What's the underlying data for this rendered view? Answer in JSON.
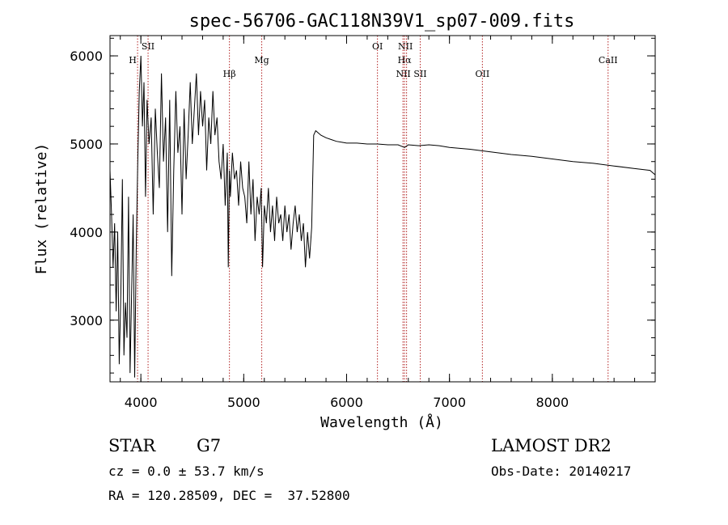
{
  "chart_data": {
    "type": "line",
    "title": "spec-56706-GAC118N39V1_sp07-009.fits",
    "xlabel": "Wavelength (Å)",
    "ylabel": "Flux (relative)",
    "xlim": [
      3700,
      9000
    ],
    "ylim": [
      2300,
      6230
    ],
    "x_ticks": [
      4000,
      5000,
      6000,
      7000,
      8000
    ],
    "x_tick_labels": [
      "4000",
      "5000",
      "6000",
      "7000",
      "8000"
    ],
    "y_ticks": [
      3000,
      4000,
      5000,
      6000
    ],
    "y_tick_labels": [
      "3000",
      "4000",
      "5000",
      "6000"
    ],
    "grid": false,
    "line_color": "#000000",
    "line_marker_color": "#b22222",
    "series": [
      {
        "values_x": [
          3700,
          3715,
          3730,
          3745,
          3760,
          3775,
          3790,
          3805,
          3820,
          3835,
          3850,
          3865,
          3880,
          3895,
          3910,
          3925,
          3940,
          3955,
          3970,
          3985,
          4000,
          4015,
          4030,
          4045,
          4060,
          4080,
          4100,
          4120,
          4140,
          4160,
          4180,
          4200,
          4220,
          4240,
          4260,
          4280,
          4300,
          4320,
          4340,
          4360,
          4380,
          4400,
          4420,
          4440,
          4460,
          4480,
          4500,
          4520,
          4540,
          4560,
          4580,
          4600,
          4620,
          4640,
          4660,
          4680,
          4700,
          4720,
          4740,
          4760,
          4780,
          4800,
          4820,
          4840,
          4850,
          4861,
          4870,
          4890,
          4910,
          4930,
          4950,
          4970,
          4990,
          5010,
          5030,
          5050,
          5070,
          5090,
          5110,
          5130,
          5150,
          5170,
          5183,
          5200,
          5220,
          5240,
          5260,
          5280,
          5300,
          5320,
          5340,
          5360,
          5380,
          5400,
          5420,
          5440,
          5460,
          5480,
          5500,
          5520,
          5540,
          5560,
          5580,
          5600,
          5620,
          5640,
          5660,
          5680,
          5700,
          5750,
          5800,
          5850,
          5900,
          5950,
          6000,
          6100,
          6200,
          6300,
          6400,
          6500,
          6563,
          6600,
          6700,
          6800,
          6900,
          7000,
          7200,
          7400,
          7600,
          7800,
          8000,
          8200,
          8400,
          8600,
          8800,
          8950,
          9000
        ],
        "values_y": [
          4700,
          4200,
          3600,
          4100,
          3100,
          4000,
          2500,
          3300,
          4600,
          2600,
          3200,
          2800,
          4400,
          2400,
          3300,
          4200,
          2350,
          3800,
          4800,
          5600,
          6000,
          5200,
          5700,
          4400,
          5500,
          5000,
          5300,
          4200,
          5400,
          4900,
          4500,
          5800,
          4800,
          5300,
          4000,
          5500,
          3500,
          4700,
          5600,
          4900,
          5200,
          4200,
          5400,
          4600,
          5100,
          5700,
          5000,
          5400,
          5800,
          5100,
          5600,
          5200,
          5500,
          4700,
          5300,
          5000,
          5600,
          5100,
          5300,
          4800,
          4600,
          5000,
          4300,
          4900,
          3600,
          4700,
          4400,
          4900,
          4600,
          4700,
          4300,
          4800,
          4500,
          4400,
          4100,
          4800,
          4200,
          4600,
          3900,
          4400,
          4200,
          4500,
          3600,
          4300,
          4100,
          4500,
          4000,
          4300,
          3900,
          4400,
          4100,
          4200,
          3900,
          4300,
          4000,
          4200,
          3800,
          4100,
          4300,
          4000,
          4200,
          3900,
          4100,
          3600,
          4000,
          3700,
          4050,
          5100,
          5150,
          5100,
          5070,
          5050,
          5030,
          5020,
          5010,
          5010,
          5000,
          5000,
          4990,
          4990,
          4960,
          4990,
          4980,
          4990,
          4980,
          4960,
          4940,
          4910,
          4880,
          4860,
          4830,
          4800,
          4780,
          4750,
          4720,
          4700,
          4650
        ]
      }
    ],
    "lines": [
      {
        "label": "H",
        "x": 3968
      },
      {
        "label": "SII",
        "x": 4070
      },
      {
        "label": "Hβ",
        "x": 4861
      },
      {
        "label": "Mg",
        "x": 5175
      },
      {
        "label": "OI",
        "x": 6300
      },
      {
        "label": "NII",
        "x": 6548
      },
      {
        "label": "Hα",
        "x": 6563
      },
      {
        "label": "NII",
        "x": 6583
      },
      {
        "label": "SII",
        "x": 6716
      },
      {
        "label": "OII",
        "x": 7320
      },
      {
        "label": "CaII",
        "x": 8542
      }
    ]
  },
  "info": {
    "class": "STAR",
    "subclass": "G7",
    "survey": "LAMOST DR2",
    "redshift": "cz = 0.0 ± 53.7 km/s",
    "obs_date": "Obs-Date: 20140217",
    "coords": "RA = 120.28509, DEC =  37.52800"
  }
}
